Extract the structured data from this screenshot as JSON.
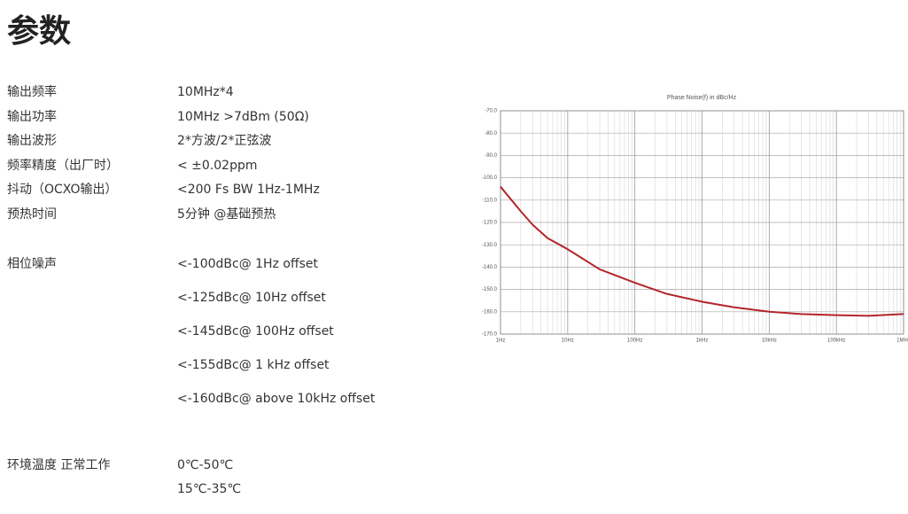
{
  "header": {
    "title": "参数"
  },
  "specs": [
    {
      "label": "输出频率",
      "values": [
        "10MHz*4"
      ]
    },
    {
      "label": "输出功率",
      "values": [
        "10MHz >7dBm (50Ω)"
      ]
    },
    {
      "label": "输出波形",
      "values": [
        "2*方波/2*正弦波"
      ]
    },
    {
      "label": "频率精度（出厂时）",
      "values": [
        "< ±0.02ppm"
      ]
    },
    {
      "label": "抖动（OCXO输出）",
      "values": [
        "<200 Fs BW 1Hz-1MHz"
      ]
    },
    {
      "label": "预热时间",
      "values": [
        "5分钟 @基础预热"
      ]
    },
    {
      "label": "相位噪声",
      "values": [
        "<-100dBc@ 1Hz offset",
        "<-125dBc@ 10Hz offset",
        "<-145dBc@ 100Hz offset",
        "<-155dBc@ 1 kHz  offset",
        "<-160dBc@ above 10kHz  offset"
      ]
    },
    {
      "label": "环境温度 正常工作",
      "values": [
        "0℃-50℃",
        "15℃-35℃"
      ]
    }
  ],
  "chart_data": {
    "type": "line",
    "title": "Phase Noise(f) in dBc/Hz",
    "x": [
      1,
      2,
      3,
      5,
      10,
      30,
      100,
      300,
      1000,
      3000,
      10000,
      30000,
      100000,
      300000,
      1000000
    ],
    "values": [
      -104,
      -115,
      -121,
      -127,
      -132,
      -141,
      -147,
      -152,
      -155.5,
      -158,
      -160,
      -161,
      -161.5,
      -161.8,
      -161
    ],
    "color": "#b3262a",
    "xscale": "log",
    "grid": true,
    "minor_grid": true,
    "xlim": [
      1,
      1000000
    ],
    "ylim": [
      -170,
      -70
    ],
    "xticks": [
      {
        "value": 1,
        "label": "1Hz"
      },
      {
        "value": 10,
        "label": "10Hz"
      },
      {
        "value": 100,
        "label": "100Hz"
      },
      {
        "value": 1000,
        "label": "1kHz"
      },
      {
        "value": 10000,
        "label": "10kHz"
      },
      {
        "value": 100000,
        "label": "100kHz"
      },
      {
        "value": 1000000,
        "label": "1MHz"
      }
    ],
    "yticks": [
      {
        "value": -70,
        "label": "-70.0"
      },
      {
        "value": -80,
        "label": "-80.0"
      },
      {
        "value": -90,
        "label": "-90.0"
      },
      {
        "value": -100,
        "label": "-100.0"
      },
      {
        "value": -110,
        "label": "-110.0"
      },
      {
        "value": -120,
        "label": "-120.0"
      },
      {
        "value": -130,
        "label": "-130.0"
      },
      {
        "value": -140,
        "label": "-140.0"
      },
      {
        "value": -150,
        "label": "-150.0"
      },
      {
        "value": -160,
        "label": "-160.0"
      },
      {
        "value": -170,
        "label": "-170.0"
      }
    ]
  }
}
